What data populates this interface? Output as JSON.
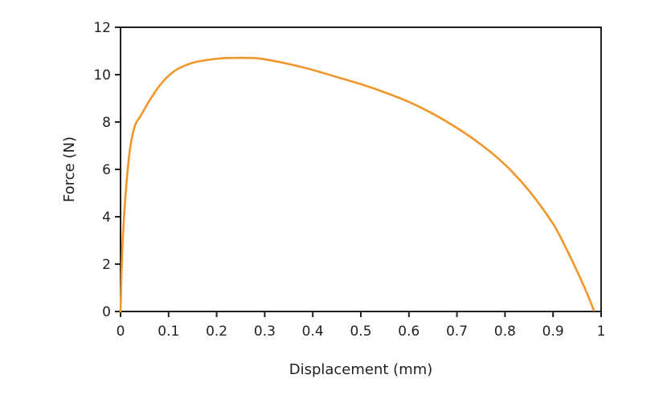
{
  "chart_data": {
    "type": "line",
    "title": "",
    "xlabel": "Displacement (mm)",
    "ylabel": "Force (N)",
    "xlim": [
      0,
      1
    ],
    "ylim": [
      0,
      12
    ],
    "x_ticks": [
      0,
      0.1,
      0.2,
      0.3,
      0.4,
      0.5,
      0.6,
      0.7,
      0.8,
      0.9,
      1
    ],
    "x_tick_labels": [
      "0",
      "0.1",
      "0.2",
      "0.3",
      "0.4",
      "0.5",
      "0.6",
      "0.7",
      "0.8",
      "0.9",
      "1"
    ],
    "y_ticks": [
      0,
      2,
      4,
      6,
      8,
      10,
      12
    ],
    "y_tick_labels": [
      "0",
      "2",
      "4",
      "6",
      "8",
      "10",
      "12"
    ],
    "grid": false,
    "legend": "none",
    "series": [
      {
        "color": "#f0962a",
        "x": [
          0,
          0.002,
          0.005,
          0.01,
          0.015,
          0.02,
          0.025,
          0.03,
          0.035,
          0.04,
          0.05,
          0.06,
          0.08,
          0.1,
          0.12,
          0.15,
          0.18,
          0.2,
          0.22,
          0.25,
          0.28,
          0.3,
          0.35,
          0.4,
          0.45,
          0.5,
          0.55,
          0.6,
          0.65,
          0.7,
          0.75,
          0.8,
          0.85,
          0.9,
          0.93,
          0.95,
          0.97,
          0.985
        ],
        "y": [
          0,
          1.6,
          3.2,
          4.8,
          6.0,
          6.9,
          7.45,
          7.85,
          8.05,
          8.2,
          8.55,
          8.9,
          9.5,
          9.95,
          10.25,
          10.5,
          10.62,
          10.67,
          10.7,
          10.71,
          10.7,
          10.65,
          10.45,
          10.2,
          9.9,
          9.6,
          9.25,
          8.85,
          8.35,
          7.75,
          7.05,
          6.2,
          5.1,
          3.7,
          2.55,
          1.7,
          0.8,
          0.05
        ]
      }
    ]
  }
}
